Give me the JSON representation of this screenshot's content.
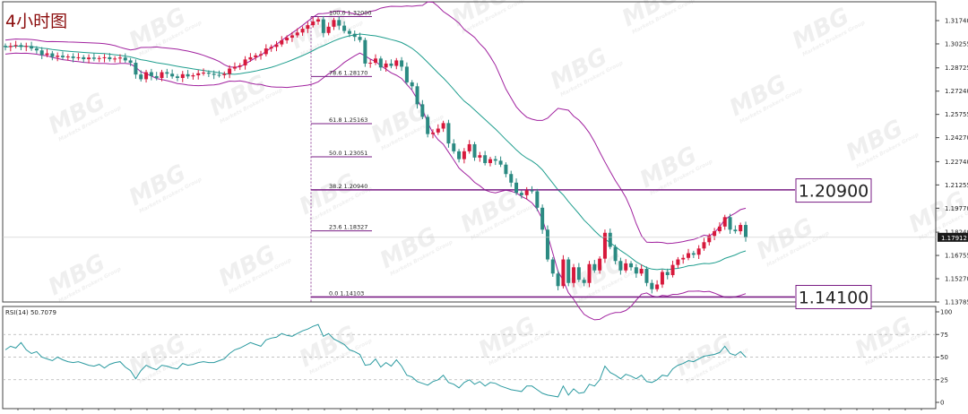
{
  "chart_data": {
    "type": "candlestick",
    "title": "4小时图",
    "watermark": {
      "brand": "MBG",
      "sub": "Markets Brokers Group"
    },
    "price_axis": {
      "ylim": [
        1.13785,
        1.3174
      ],
      "ticks": [
        "1.31740",
        "1.30255",
        "1.28725",
        "1.27240",
        "1.25755",
        "1.24270",
        "1.22740",
        "1.21255",
        "1.19770",
        "1.18240",
        "1.16755",
        "1.15270",
        "1.13785"
      ],
      "current_price": "1.17912"
    },
    "fibonacci": [
      {
        "label": "100.0  1.32000",
        "price": 1.32
      },
      {
        "label": "78.6  1.28170",
        "price": 1.2817
      },
      {
        "label": "61.8  1.25163",
        "price": 1.25163
      },
      {
        "label": "50.0  1.23051",
        "price": 1.23051
      },
      {
        "label": "38.2  1.20940",
        "price": 1.2094
      },
      {
        "label": "23.6  1.18327",
        "price": 1.18327
      },
      {
        "label": "0.0  1.14103",
        "price": 1.14103
      }
    ],
    "key_levels": [
      {
        "label": "1.20900",
        "price": 1.209
      },
      {
        "label": "1.14100",
        "price": 1.141
      }
    ],
    "close_series": [
      1.3005,
      1.3012,
      1.3018,
      1.3006,
      1.3012,
      1.2996,
      1.2984,
      1.2955,
      1.2965,
      1.2942,
      1.295,
      1.294,
      1.2945,
      1.2935,
      1.294,
      1.2928,
      1.2938,
      1.293,
      1.2935,
      1.294,
      1.2928,
      1.2932,
      1.2938,
      1.292,
      1.2905,
      1.283,
      1.28,
      1.2845,
      1.282,
      1.2808,
      1.2845,
      1.2835,
      1.2818,
      1.2808,
      1.2832,
      1.2818,
      1.2825,
      1.2838,
      1.2842,
      1.2835,
      1.2828,
      1.2826,
      1.2834,
      1.2868,
      1.288,
      1.2888,
      1.2926,
      1.294,
      1.2952,
      1.296,
      1.2996,
      1.3006,
      1.3022,
      1.3048,
      1.3065,
      1.308,
      1.3098,
      1.3122,
      1.3145,
      1.3168,
      1.3182,
      1.3095,
      1.3135,
      1.3178,
      1.3142,
      1.3108,
      1.309,
      1.307,
      1.305,
      1.29,
      1.2905,
      1.2932,
      1.2875,
      1.29,
      1.2885,
      1.292,
      1.288,
      1.278,
      1.2755,
      1.264,
      1.256,
      1.245,
      1.246,
      1.2485,
      1.252,
      1.239,
      1.234,
      1.229,
      1.234,
      1.2385,
      1.23,
      1.2315,
      1.2265,
      1.229,
      1.228,
      1.2255,
      1.2195,
      1.214,
      1.2075,
      1.206,
      1.209,
      1.2085,
      1.198,
      1.184,
      1.165,
      1.156,
      1.148,
      1.165,
      1.15,
      1.16,
      1.152,
      1.15,
      1.162,
      1.158,
      1.1655,
      1.182,
      1.173,
      1.164,
      1.158,
      1.1625,
      1.16,
      1.156,
      1.159,
      1.15,
      1.146,
      1.149,
      1.157,
      1.155,
      1.1615,
      1.165,
      1.166,
      1.169,
      1.168,
      1.172,
      1.176,
      1.18,
      1.183,
      1.186,
      1.192,
      1.184,
      1.183,
      1.187,
      1.179
    ],
    "rsi": {
      "label": "RSI(14) 50.7079",
      "ylim": [
        0,
        100
      ],
      "ticks": [
        "100",
        "75",
        "50",
        "25",
        "0"
      ],
      "levels": [
        75,
        50,
        25
      ],
      "values": [
        58,
        62,
        60,
        66,
        58,
        54,
        56,
        50,
        48,
        46,
        50,
        47,
        45,
        44,
        45,
        43,
        41,
        40,
        42,
        38,
        42,
        44,
        45,
        39,
        35,
        26,
        35,
        41,
        38,
        36,
        41,
        40,
        38,
        37,
        43,
        41,
        42,
        44,
        45,
        44,
        44,
        46,
        48,
        54,
        58,
        60,
        63,
        66,
        64,
        62,
        69,
        71,
        72,
        76,
        74,
        73,
        76,
        79,
        81,
        84,
        86,
        73,
        76,
        70,
        67,
        64,
        58,
        56,
        53,
        41,
        42,
        48,
        39,
        44,
        40,
        47,
        40,
        30,
        28,
        23,
        21,
        19,
        23,
        25,
        30,
        22,
        20,
        16,
        22,
        25,
        20,
        23,
        18,
        22,
        21,
        18,
        16,
        14,
        13,
        12,
        18,
        18,
        14,
        10,
        8,
        7,
        6,
        18,
        8,
        15,
        10,
        11,
        20,
        18,
        25,
        40,
        33,
        30,
        26,
        31,
        29,
        26,
        30,
        23,
        22,
        25,
        30,
        29,
        37,
        41,
        43,
        46,
        45,
        48,
        51,
        52,
        53,
        55,
        62,
        54,
        52,
        56,
        50
      ]
    },
    "colors": {
      "bull": "#d7193c",
      "bear": "#2b8a82",
      "bollinger_outer": "#a1229f",
      "bollinger_mid": "#1f9e8e",
      "fib": "#7a1e85",
      "rsi_line": "#2b9aa0"
    }
  }
}
